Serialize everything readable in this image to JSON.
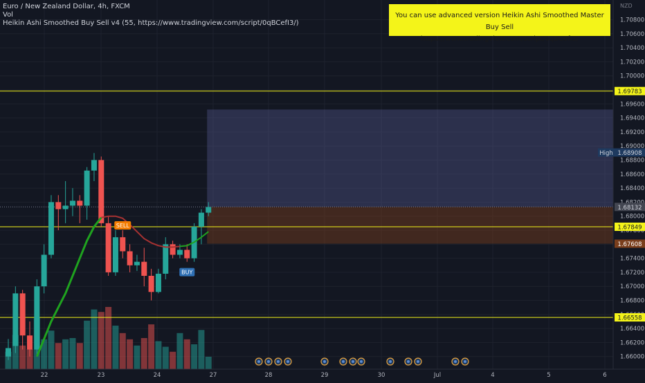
{
  "header": {
    "symbol_line": "Euro / New Zealand Dollar, 4h, FXCM",
    "indicator_1": "Vol",
    "indicator_2": "Heikin Ashi Smoothed Buy Sell v4  (55, https://www.tradingview.com/script/0qBCefI3/)"
  },
  "banner": {
    "line1": "You  can use advanced version Heikin Ashi Smoothed Master Buy Sell",
    "line2": "https://www.tradingview.com/script/0qBCefI3/"
  },
  "chart_data": {
    "type": "candlestick",
    "currency": "NZD",
    "y_ticks": [
      "1.70800",
      "1.70600",
      "1.70400",
      "1.70200",
      "1.70000",
      "1.69800",
      "1.69600",
      "1.69400",
      "1.69200",
      "1.69000",
      "1.68800",
      "1.68600",
      "1.68400",
      "1.68200",
      "1.68000",
      "1.67800",
      "1.67600",
      "1.67400",
      "1.67200",
      "1.67000",
      "1.66800",
      "1.66600",
      "1.66400",
      "1.66200",
      "1.66000"
    ],
    "ylim": [
      1.66,
      1.71
    ],
    "x_ticks": [
      "22",
      "23",
      "24",
      "27",
      "28",
      "29",
      "30",
      "Jul",
      "4",
      "5",
      "6"
    ],
    "horizontal_levels": [
      {
        "label": "1.69783",
        "value": 1.69783
      },
      {
        "label": "1.67849",
        "value": 1.67849
      },
      {
        "label": "1.66558",
        "value": 1.66558
      }
    ],
    "price_tags": [
      {
        "label": "1.68908",
        "value": 1.68908,
        "prefix": "High"
      },
      {
        "label": "1.67608",
        "value": 1.67608
      },
      {
        "label": "1.68132",
        "value": 1.68132
      }
    ],
    "markers": [
      {
        "label": "SELL",
        "index": 16
      },
      {
        "label": "BUY",
        "index": 25
      }
    ],
    "bull_color": "#26a69a",
    "bear_color": "#ef5350",
    "candles": [
      {
        "o": 1.66,
        "h": 1.6625,
        "l": 1.6595,
        "c": 1.6612
      },
      {
        "o": 1.6615,
        "h": 1.67,
        "l": 1.6605,
        "c": 1.669
      },
      {
        "o": 1.669,
        "h": 1.6695,
        "l": 1.661,
        "c": 1.663
      },
      {
        "o": 1.663,
        "h": 1.665,
        "l": 1.66,
        "c": 1.661
      },
      {
        "o": 1.661,
        "h": 1.671,
        "l": 1.66,
        "c": 1.67
      },
      {
        "o": 1.67,
        "h": 1.676,
        "l": 1.669,
        "c": 1.6745
      },
      {
        "o": 1.6745,
        "h": 1.683,
        "l": 1.674,
        "c": 1.682
      },
      {
        "o": 1.682,
        "h": 1.683,
        "l": 1.678,
        "c": 1.681
      },
      {
        "o": 1.681,
        "h": 1.685,
        "l": 1.679,
        "c": 1.6815
      },
      {
        "o": 1.6815,
        "h": 1.684,
        "l": 1.68,
        "c": 1.6822
      },
      {
        "o": 1.6822,
        "h": 1.683,
        "l": 1.679,
        "c": 1.6815
      },
      {
        "o": 1.6815,
        "h": 1.687,
        "l": 1.6795,
        "c": 1.6865
      },
      {
        "o": 1.6865,
        "h": 1.689,
        "l": 1.685,
        "c": 1.688
      },
      {
        "o": 1.688,
        "h": 1.6885,
        "l": 1.6785,
        "c": 1.679
      },
      {
        "o": 1.679,
        "h": 1.68,
        "l": 1.6715,
        "c": 1.672
      },
      {
        "o": 1.672,
        "h": 1.678,
        "l": 1.6715,
        "c": 1.677
      },
      {
        "o": 1.677,
        "h": 1.678,
        "l": 1.674,
        "c": 1.675
      },
      {
        "o": 1.675,
        "h": 1.676,
        "l": 1.672,
        "c": 1.673
      },
      {
        "o": 1.673,
        "h": 1.6745,
        "l": 1.6722,
        "c": 1.6735
      },
      {
        "o": 1.6735,
        "h": 1.6755,
        "l": 1.67,
        "c": 1.6715
      },
      {
        "o": 1.6715,
        "h": 1.6725,
        "l": 1.668,
        "c": 1.6692
      },
      {
        "o": 1.6692,
        "h": 1.6725,
        "l": 1.669,
        "c": 1.6718
      },
      {
        "o": 1.6718,
        "h": 1.677,
        "l": 1.671,
        "c": 1.676
      },
      {
        "o": 1.676,
        "h": 1.6765,
        "l": 1.674,
        "c": 1.6745
      },
      {
        "o": 1.6745,
        "h": 1.676,
        "l": 1.674,
        "c": 1.6752
      },
      {
        "o": 1.6752,
        "h": 1.676,
        "l": 1.6735,
        "c": 1.674
      },
      {
        "o": 1.674,
        "h": 1.679,
        "l": 1.6735,
        "c": 1.6785
      },
      {
        "o": 1.6785,
        "h": 1.681,
        "l": 1.676,
        "c": 1.6805
      },
      {
        "o": 1.6805,
        "h": 1.682,
        "l": 1.68,
        "c": 1.6813
      }
    ],
    "volume": [
      28,
      55,
      38,
      32,
      82,
      48,
      62,
      42,
      48,
      50,
      42,
      78,
      96,
      92,
      100,
      70,
      58,
      48,
      38,
      50,
      72,
      45,
      36,
      28,
      58,
      48,
      40,
      63,
      20
    ],
    "smoothed_line_up": [
      {
        "i": 4,
        "y": 1.66
      },
      {
        "i": 6,
        "y": 1.665
      },
      {
        "i": 8,
        "y": 1.669
      },
      {
        "i": 10,
        "y": 1.674
      },
      {
        "i": 11,
        "y": 1.6765
      },
      {
        "i": 12,
        "y": 1.6785
      },
      {
        "i": 13,
        "y": 1.6798
      }
    ],
    "smoothed_line_down": [
      {
        "i": 13,
        "y": 1.6798
      },
      {
        "i": 14,
        "y": 1.68
      },
      {
        "i": 15,
        "y": 1.68
      },
      {
        "i": 16,
        "y": 1.6797
      },
      {
        "i": 17,
        "y": 1.6788
      },
      {
        "i": 18,
        "y": 1.6778
      },
      {
        "i": 19,
        "y": 1.6768
      },
      {
        "i": 20,
        "y": 1.6762
      },
      {
        "i": 21,
        "y": 1.6758
      },
      {
        "i": 22,
        "y": 1.6756
      },
      {
        "i": 23,
        "y": 1.6756
      },
      {
        "i": 24,
        "y": 1.6757
      }
    ],
    "smoothed_line_up2": [
      {
        "i": 24,
        "y": 1.6757
      },
      {
        "i": 25,
        "y": 1.6758
      },
      {
        "i": 26,
        "y": 1.6763
      },
      {
        "i": 27,
        "y": 1.677
      },
      {
        "i": 28,
        "y": 1.6778
      }
    ],
    "zones": [
      {
        "type": "range-upper",
        "from_value": 1.6952,
        "to_value": 1.68132
      },
      {
        "type": "range-lower",
        "from_value": 1.68132,
        "to_value": 1.67608
      }
    ],
    "event_icon_count": 13
  }
}
